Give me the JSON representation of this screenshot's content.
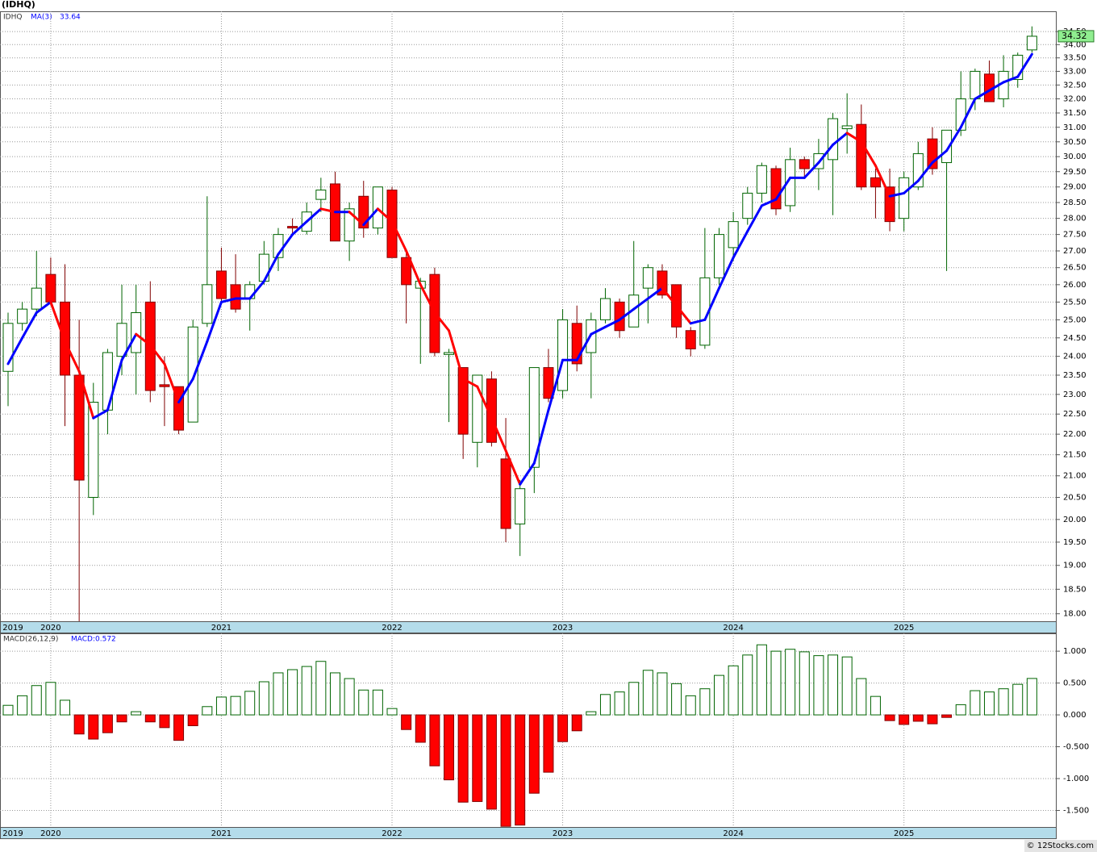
{
  "title": "(IDHQ)",
  "footer": "© 12Stocks.com",
  "chart_data": [
    {
      "type": "candlestick",
      "symbol": "IDHQ",
      "categories": [
        "2019",
        null,
        null,
        "2020",
        null,
        null,
        null,
        null,
        null,
        null,
        null,
        null,
        null,
        null,
        null,
        "2021",
        null,
        null,
        null,
        null,
        null,
        null,
        null,
        null,
        null,
        null,
        null,
        "2022",
        null,
        null,
        null,
        null,
        null,
        null,
        null,
        null,
        null,
        null,
        null,
        "2023",
        null,
        null,
        null,
        null,
        null,
        null,
        null,
        null,
        null,
        null,
        null,
        "2024",
        null,
        null,
        null,
        null,
        null,
        null,
        null,
        null,
        null,
        null,
        null,
        "2025",
        null,
        null,
        null,
        null,
        null,
        null,
        null,
        null,
        null
      ],
      "open": [
        23.6,
        24.9,
        25.3,
        26.3,
        25.5,
        23.5,
        20.5,
        22.6,
        24.0,
        24.1,
        25.5,
        23.25,
        23.2,
        22.3,
        24.9,
        26.4,
        26.0,
        25.6,
        26.1,
        26.8,
        27.75,
        27.6,
        28.6,
        29.1,
        27.3,
        28.7,
        27.7,
        28.9,
        26.8,
        25.9,
        26.3,
        24.05,
        23.7,
        21.8,
        23.4,
        21.4,
        19.9,
        21.2,
        23.7,
        23.1,
        24.9,
        24.1,
        25.0,
        25.5,
        24.8,
        25.9,
        26.4,
        26.0,
        24.7,
        24.3,
        26.2,
        27.1,
        28.0,
        28.8,
        29.6,
        28.4,
        29.9,
        29.6,
        29.9,
        30.95,
        31.1,
        29.3,
        29.0,
        28.0,
        29.0,
        30.6,
        29.8,
        30.9,
        32.0,
        32.9,
        32.0,
        32.7,
        33.8
      ],
      "high": [
        25.2,
        25.5,
        27.0,
        26.8,
        26.6,
        25.0,
        23.3,
        24.2,
        26.0,
        26.0,
        26.1,
        24.0,
        23.2,
        25.0,
        28.7,
        27.1,
        26.9,
        26.1,
        27.3,
        27.7,
        28.0,
        28.5,
        29.3,
        29.5,
        28.5,
        29.2,
        29.0,
        29.0,
        27.0,
        26.2,
        26.5,
        24.2,
        23.7,
        23.5,
        23.6,
        22.4,
        20.9,
        23.7,
        24.2,
        25.3,
        25.4,
        25.2,
        25.9,
        25.6,
        27.3,
        26.6,
        26.6,
        26.0,
        24.8,
        27.7,
        27.7,
        28.2,
        29.0,
        29.8,
        29.7,
        30.3,
        30.0,
        30.6,
        31.5,
        32.2,
        31.8,
        29.6,
        29.6,
        29.5,
        30.5,
        31.0,
        30.9,
        33.0,
        33.1,
        33.4,
        33.6,
        33.7,
        34.7
      ],
      "low": [
        22.7,
        24.7,
        25.1,
        25.4,
        22.2,
        17.8,
        20.1,
        22.0,
        23.5,
        23.0,
        22.8,
        22.2,
        22.0,
        22.3,
        24.8,
        25.5,
        25.2,
        24.7,
        26.0,
        26.4,
        27.5,
        27.5,
        28.2,
        27.3,
        26.7,
        27.4,
        27.5,
        26.8,
        24.9,
        23.8,
        24.0,
        22.3,
        21.4,
        21.2,
        21.7,
        19.5,
        19.2,
        20.6,
        22.8,
        22.9,
        23.6,
        22.9,
        24.9,
        24.5,
        24.8,
        24.9,
        25.6,
        24.5,
        24.0,
        24.2,
        26.0,
        26.7,
        27.8,
        28.5,
        28.1,
        28.2,
        29.3,
        28.9,
        28.1,
        30.1,
        28.9,
        28.0,
        27.6,
        27.6,
        28.9,
        29.4,
        26.4,
        30.7,
        31.6,
        31.9,
        31.7,
        32.4,
        33.7
      ],
      "close": [
        24.9,
        25.3,
        25.9,
        25.5,
        23.5,
        20.9,
        22.8,
        24.1,
        24.9,
        25.2,
        23.1,
        23.2,
        22.1,
        24.8,
        26.0,
        25.6,
        25.3,
        26.0,
        26.9,
        27.5,
        27.7,
        28.2,
        28.9,
        27.3,
        28.3,
        27.7,
        29.0,
        26.8,
        26.0,
        26.1,
        24.1,
        24.1,
        22.0,
        23.5,
        21.8,
        19.8,
        20.7,
        23.7,
        22.9,
        25.0,
        23.8,
        25.0,
        25.6,
        24.7,
        25.7,
        26.5,
        25.7,
        24.8,
        24.2,
        26.2,
        27.5,
        27.9,
        28.8,
        29.7,
        28.3,
        29.9,
        29.6,
        30.1,
        31.3,
        31.05,
        29.0,
        29.0,
        27.9,
        29.3,
        30.1,
        29.6,
        30.9,
        32.0,
        33.0,
        31.9,
        33.0,
        33.6,
        34.32
      ],
      "up_color": "#006400",
      "down_color": "#ff0000",
      "series": [
        {
          "name": "MA(3)",
          "up_color": "#0000ff",
          "down_color": "#ff0000",
          "values": [
            23.8,
            24.5,
            25.2,
            25.5,
            24.4,
            23.6,
            22.4,
            22.6,
            23.9,
            24.6,
            24.3,
            23.8,
            22.8,
            23.4,
            24.4,
            25.5,
            25.6,
            25.6,
            26.1,
            26.9,
            27.5,
            27.9,
            28.3,
            28.2,
            28.2,
            27.8,
            28.3,
            27.9,
            27.0,
            26.0,
            25.2,
            24.7,
            23.4,
            23.2,
            22.4,
            21.6,
            20.8,
            21.3,
            22.6,
            23.9,
            23.9,
            24.6,
            24.8,
            25.0,
            25.3,
            25.6,
            25.9,
            25.4,
            24.9,
            25.0,
            25.9,
            26.8,
            27.6,
            28.4,
            28.6,
            29.3,
            29.3,
            29.8,
            30.4,
            30.8,
            30.5,
            29.7,
            28.7,
            28.8,
            29.2,
            29.8,
            30.2,
            31.0,
            32.0,
            32.3,
            32.6,
            32.8,
            33.64
          ]
        }
      ],
      "log_scale": true,
      "grid": true,
      "ylim": [
        17.85,
        35.29
      ],
      "yticks": [
        {
          "value": 18,
          "label": "18.00"
        },
        {
          "value": 18.5,
          "label": "18.50"
        },
        {
          "value": 19,
          "label": "19.00"
        },
        {
          "value": 19.5,
          "label": "19.50"
        },
        {
          "value": 20,
          "label": "20.00"
        },
        {
          "value": 20.5,
          "label": "20.50"
        },
        {
          "value": 21,
          "label": "21.00"
        },
        {
          "value": 21.5,
          "label": "21.50"
        },
        {
          "value": 22,
          "label": "22.00"
        },
        {
          "value": 22.5,
          "label": "22.50"
        },
        {
          "value": 23,
          "label": "23.00"
        },
        {
          "value": 23.5,
          "label": "23.50"
        },
        {
          "value": 24,
          "label": "24.00"
        },
        {
          "value": 24.5,
          "label": "24.50"
        },
        {
          "value": 25,
          "label": "25.00"
        },
        {
          "value": 25.5,
          "label": "25.50"
        },
        {
          "value": 26,
          "label": "26.00"
        },
        {
          "value": 26.5,
          "label": "26.50"
        },
        {
          "value": 27,
          "label": "27.00"
        },
        {
          "value": 27.5,
          "label": "27.50"
        },
        {
          "value": 28,
          "label": "28.00"
        },
        {
          "value": 28.5,
          "label": "28.50"
        },
        {
          "value": 29,
          "label": "29.00"
        },
        {
          "value": 29.5,
          "label": "29.50"
        },
        {
          "value": 30,
          "label": "30.00"
        },
        {
          "value": 30.5,
          "label": "30.50"
        },
        {
          "value": 31,
          "label": "31.00"
        },
        {
          "value": 31.5,
          "label": "31.50"
        },
        {
          "value": 32,
          "label": "32.00"
        },
        {
          "value": 32.5,
          "label": "32.50"
        },
        {
          "value": 33,
          "label": "33.00"
        },
        {
          "value": 33.5,
          "label": "33.50"
        },
        {
          "value": 34,
          "label": "34.00"
        },
        {
          "value": 34.5,
          "label": "34.50"
        }
      ]
    },
    {
      "type": "bar",
      "indicator": "MACD(26,12,9)",
      "legend_value": "MACD:0.572",
      "values": [
        0.15,
        0.3,
        0.46,
        0.51,
        0.23,
        -0.3,
        -0.38,
        -0.28,
        -0.11,
        0.05,
        -0.11,
        -0.2,
        -0.4,
        -0.17,
        0.13,
        0.28,
        0.29,
        0.37,
        0.52,
        0.66,
        0.71,
        0.76,
        0.84,
        0.66,
        0.57,
        0.39,
        0.39,
        0.1,
        -0.23,
        -0.43,
        -0.8,
        -1.02,
        -1.37,
        -1.36,
        -1.48,
        -1.75,
        -1.73,
        -1.23,
        -0.9,
        -0.42,
        -0.25,
        0.05,
        0.32,
        0.36,
        0.51,
        0.7,
        0.66,
        0.49,
        0.3,
        0.41,
        0.62,
        0.77,
        0.94,
        1.1,
        1.0,
        1.03,
        0.99,
        0.93,
        0.94,
        0.91,
        0.57,
        0.29,
        -0.09,
        -0.15,
        -0.1,
        -0.14,
        -0.04,
        0.16,
        0.38,
        0.36,
        0.41,
        0.48,
        0.572
      ],
      "up_color": "#006400",
      "down_color": "#ff0000",
      "grid": true,
      "ylim": [
        -1.76,
        1.28
      ],
      "yticks": [
        {
          "value": 1,
          "label": "1.000"
        },
        {
          "value": 0.5,
          "label": "0.500"
        },
        {
          "value": 0,
          "label": "0.000"
        },
        {
          "value": -0.5,
          "label": "-0.500"
        },
        {
          "value": -1,
          "label": "-1.000"
        },
        {
          "value": -1.5,
          "label": "-1.500"
        }
      ]
    }
  ]
}
